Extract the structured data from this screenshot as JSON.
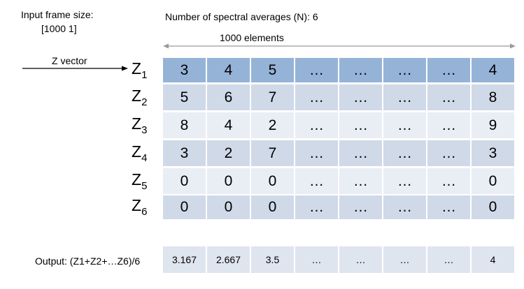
{
  "header": {
    "input_label": "Input frame size:",
    "input_size": "[1000 1]",
    "averages": "Number of spectral averages (N): 6",
    "elements": "1000 elements",
    "vector_label": "Z vector"
  },
  "table": {
    "rows": [
      {
        "name": "Z",
        "sub": "1",
        "cells": [
          "3",
          "4",
          "5",
          "…",
          "…",
          "…",
          "…",
          "4"
        ]
      },
      {
        "name": "Z",
        "sub": "2",
        "cells": [
          "5",
          "6",
          "7",
          "…",
          "…",
          "…",
          "…",
          "8"
        ]
      },
      {
        "name": "Z",
        "sub": "3",
        "cells": [
          "8",
          "4",
          "2",
          "…",
          "…",
          "…",
          "…",
          "9"
        ]
      },
      {
        "name": "Z",
        "sub": "4",
        "cells": [
          "3",
          "2",
          "7",
          "…",
          "…",
          "…",
          "…",
          "3"
        ]
      },
      {
        "name": "Z",
        "sub": "5",
        "cells": [
          "0",
          "0",
          "0",
          "…",
          "…",
          "…",
          "…",
          "0"
        ]
      },
      {
        "name": "Z",
        "sub": "6",
        "cells": [
          "0",
          "0",
          "0",
          "…",
          "…",
          "…",
          "…",
          "0"
        ]
      }
    ]
  },
  "output": {
    "label": "Output: (Z1+Z2+…Z6)/6",
    "cells": [
      "3.167",
      "2.667",
      "3.5",
      "…",
      "…",
      "…",
      "…",
      "4"
    ]
  }
}
